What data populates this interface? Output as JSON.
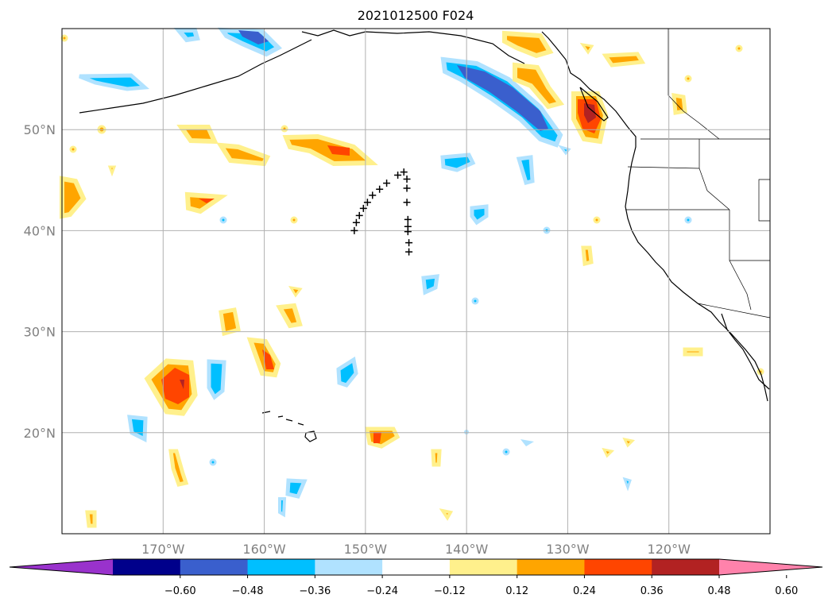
{
  "title": "2021012500 F024",
  "map": {
    "extent": {
      "lon": [
        -180,
        -110
      ],
      "lat": [
        10,
        60
      ]
    },
    "grid": true,
    "lat_ticks": [
      {
        "value": 20,
        "label": "20°N"
      },
      {
        "value": 30,
        "label": "30°N"
      },
      {
        "value": 40,
        "label": "40°N"
      },
      {
        "value": 50,
        "label": "50°N"
      }
    ],
    "lon_ticks": [
      {
        "value": -170,
        "label": "170°W"
      },
      {
        "value": -160,
        "label": "160°W"
      },
      {
        "value": -150,
        "label": "150°W"
      },
      {
        "value": -140,
        "label": "140°W"
      },
      {
        "value": -130,
        "label": "130°W"
      },
      {
        "value": -120,
        "label": "120°W"
      }
    ],
    "track_points": [
      [
        -151.1,
        40.0
      ],
      [
        -150.9,
        40.8
      ],
      [
        -150.6,
        41.5
      ],
      [
        -150.2,
        42.2
      ],
      [
        -149.8,
        42.8
      ],
      [
        -149.3,
        43.5
      ],
      [
        -148.6,
        44.1
      ],
      [
        -147.9,
        44.7
      ],
      [
        -146.8,
        45.5
      ],
      [
        -146.2,
        45.8
      ],
      [
        -145.9,
        45.1
      ],
      [
        -145.9,
        44.2
      ],
      [
        -145.9,
        42.8
      ],
      [
        -145.8,
        41.1
      ],
      [
        -145.8,
        40.4
      ],
      [
        -145.8,
        39.9
      ],
      [
        -145.7,
        38.8
      ],
      [
        -145.7,
        37.9
      ]
    ]
  },
  "colorbar": {
    "extend": "both",
    "colors": [
      "#9932cc",
      "#00008b",
      "#3a5fcd",
      "#00bfff",
      "#b0e2ff",
      "#ffffff",
      "#fff08c",
      "#ffa500",
      "#ff4500",
      "#b22222",
      "#ff82ab"
    ],
    "ticks": [
      "−0.60",
      "−0.48",
      "−0.36",
      "−0.24",
      "−0.12",
      "0.12",
      "0.24",
      "0.36",
      "0.48",
      "0.60"
    ]
  }
}
